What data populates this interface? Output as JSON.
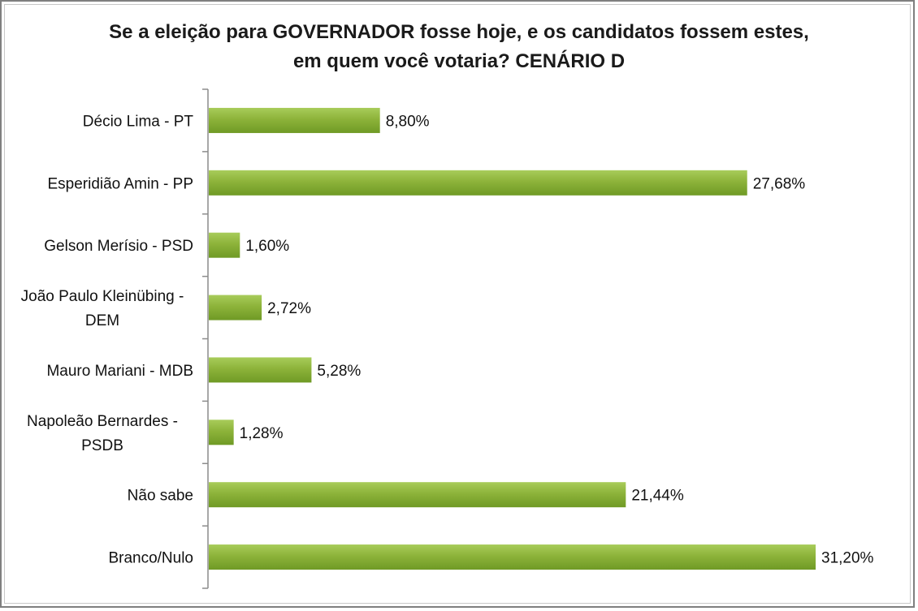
{
  "chart_data": {
    "type": "bar",
    "orientation": "horizontal",
    "title": [
      "Se a eleição para GOVERNADOR fosse hoje, e os candidatos fossem estes,",
      "em quem você votaria? CENÁRIO D"
    ],
    "categories": [
      [
        "Décio Lima - PT"
      ],
      [
        "Esperidião Amin - PP"
      ],
      [
        "Gelson Merísio - PSD"
      ],
      [
        "João Paulo Kleinübing -",
        "DEM"
      ],
      [
        "Mauro Mariani - MDB"
      ],
      [
        "Napoleão Bernardes -",
        "PSDB"
      ],
      [
        "Não sabe"
      ],
      [
        "Branco/Nulo"
      ]
    ],
    "values": [
      8.8,
      27.68,
      1.6,
      2.72,
      5.28,
      1.28,
      21.44,
      31.2
    ],
    "data_labels": [
      "8,80%",
      "27,68%",
      "1,60%",
      "2,72%",
      "5,28%",
      "1,28%",
      "21,44%",
      "31,20%"
    ],
    "xlim": [
      0,
      31.2
    ],
    "grid": false,
    "bar_color": "#8db33a",
    "bar_color_light": "#a8cc5a",
    "bar_color_dark": "#6f9a25"
  }
}
